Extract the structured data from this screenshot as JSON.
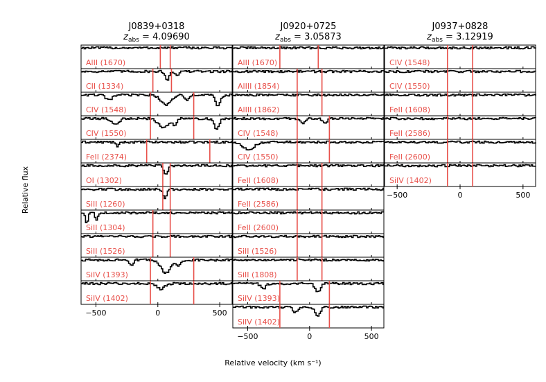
{
  "figure": {
    "ylabel": "Relative flux",
    "xlabel": "Relative velocity (km s⁻¹)"
  },
  "chart_data": [
    {
      "type": "line",
      "title": "J0839+0318",
      "subtitle": "z_abs = 4.09690",
      "subtitle_parts": {
        "sym": "z",
        "sub": "abs",
        "val": " = 4.09690"
      },
      "xlim": [
        -620,
        600
      ],
      "xticks": [
        -500,
        0,
        500
      ],
      "marker_color": "#e8504a",
      "panels": [
        {
          "ion": "AlII (1670)",
          "markers": [
            20,
            100
          ],
          "dips": []
        },
        {
          "ion": "CII (1334)",
          "markers": [
            -40,
            110
          ],
          "dips": [
            [
              70,
              0.5,
              15
            ],
            [
              150,
              0.2,
              15
            ]
          ]
        },
        {
          "ion": "CIV (1548)",
          "markers": [
            -60,
            290
          ],
          "dips": [
            [
              -400,
              0.3,
              25
            ],
            [
              60,
              0.55,
              40
            ],
            [
              230,
              0.3,
              20
            ],
            [
              480,
              0.6,
              20
            ]
          ]
        },
        {
          "ion": "CIV (1550)",
          "markers": [
            -60,
            290
          ],
          "dips": [
            [
              -350,
              0.3,
              30
            ],
            [
              40,
              0.5,
              40
            ],
            [
              130,
              0.3,
              20
            ],
            [
              470,
              0.6,
              20
            ]
          ]
        },
        {
          "ion": "FeII (2374)",
          "markers": [
            -90,
            420
          ],
          "dips": [
            [
              -330,
              0.3,
              10
            ]
          ]
        },
        {
          "ion": "OI (1302)",
          "markers": [
            40,
            100
          ],
          "dips": [
            [
              60,
              0.5,
              15
            ]
          ]
        },
        {
          "ion": "SiII (1260)",
          "markers": [
            40,
            100
          ],
          "dips": [
            [
              50,
              0.5,
              15
            ]
          ]
        },
        {
          "ion": "SiII (1304)",
          "markers": [
            -40,
            100
          ],
          "dips": [
            [
              -580,
              0.6,
              10
            ],
            [
              -500,
              0.4,
              10
            ]
          ]
        },
        {
          "ion": "SiII (1526)",
          "markers": [
            -40,
            100
          ],
          "dips": []
        },
        {
          "ion": "SiIV (1393)",
          "markers": [
            -60,
            290
          ],
          "dips": [
            [
              -220,
              0.3,
              15
            ],
            [
              60,
              0.7,
              40
            ],
            [
              160,
              0.3,
              20
            ]
          ]
        },
        {
          "ion": "SiIV (1402)",
          "markers": [
            -60,
            290
          ],
          "dips": [
            [
              20,
              0.3,
              30
            ]
          ]
        }
      ]
    },
    {
      "type": "line",
      "title": "J0920+0725",
      "subtitle": "z_abs = 3.05873",
      "subtitle_parts": {
        "sym": "z",
        "sub": "abs",
        "val": " = 3.05873"
      },
      "xlim": [
        -620,
        600
      ],
      "xticks": [
        -500,
        0,
        500
      ],
      "marker_color": "#e8504a",
      "panels": [
        {
          "ion": "AlII (1670)",
          "markers": [
            -240,
            70
          ],
          "dips": []
        },
        {
          "ion": "AlIII (1854)",
          "markers": [
            -100,
            100
          ],
          "dips": []
        },
        {
          "ion": "AlIII (1862)",
          "markers": [
            -100,
            100
          ],
          "dips": []
        },
        {
          "ion": "CIV (1548)",
          "markers": [
            -100,
            160
          ],
          "dips": [
            [
              -60,
              0.3,
              20
            ],
            [
              120,
              0.2,
              20
            ]
          ]
        },
        {
          "ion": "CIV (1550)",
          "markers": [
            -100,
            160
          ],
          "dips": [
            [
              -500,
              0.4,
              50
            ]
          ]
        },
        {
          "ion": "FeII (1608)",
          "markers": [
            -100,
            100
          ],
          "dips": []
        },
        {
          "ion": "FeII (2586)",
          "markers": [
            -100,
            100
          ],
          "dips": []
        },
        {
          "ion": "FeII (2600)",
          "markers": [
            -100,
            100
          ],
          "dips": []
        },
        {
          "ion": "SiII (1526)",
          "markers": [
            -100,
            100
          ],
          "dips": []
        },
        {
          "ion": "SiII (1808)",
          "markers": [
            -100,
            100
          ],
          "dips": []
        },
        {
          "ion": "SiIV (1393)",
          "markers": [
            -240,
            160
          ],
          "dips": [
            [
              -380,
              0.3,
              20
            ],
            [
              60,
              0.5,
              20
            ]
          ]
        },
        {
          "ion": "SiIV (1402)",
          "markers": [
            -240,
            160
          ],
          "dips": [
            [
              -120,
              0.3,
              20
            ],
            [
              60,
              0.5,
              20
            ]
          ]
        }
      ]
    },
    {
      "type": "line",
      "title": "J0937+0828",
      "subtitle": "z_abs = 3.12919",
      "subtitle_parts": {
        "sym": "z",
        "sub": "abs",
        "val": " = 3.12919"
      },
      "xlim": [
        -600,
        600
      ],
      "xticks": [
        -500,
        0,
        500
      ],
      "marker_color": "#e8504a",
      "panels": [
        {
          "ion": "CIV (1548)",
          "markers": [
            -100,
            100
          ],
          "dips": []
        },
        {
          "ion": "CIV (1550)",
          "markers": [
            -100,
            100
          ],
          "dips": []
        },
        {
          "ion": "FeII (1608)",
          "markers": [
            -100,
            100
          ],
          "dips": []
        },
        {
          "ion": "FeII (2586)",
          "markers": [
            -100,
            100
          ],
          "dips": []
        },
        {
          "ion": "FeII (2600)",
          "markers": [
            -100,
            100
          ],
          "dips": []
        },
        {
          "ion": "SiIV (1402)",
          "markers": [
            -100,
            100
          ],
          "dips": []
        }
      ]
    }
  ]
}
